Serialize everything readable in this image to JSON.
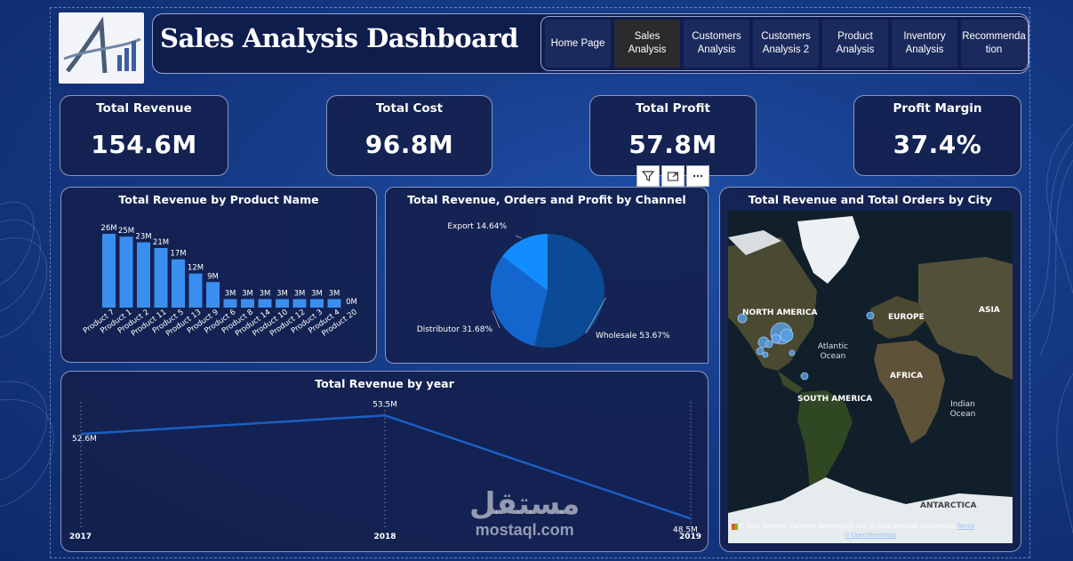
{
  "header": {
    "title": "Sales Analysis Dashboard",
    "nav": [
      {
        "label": "Home Page",
        "active": false
      },
      {
        "label": "Sales Analysis",
        "active": true
      },
      {
        "label": "Customers\nAnalysis",
        "active": false
      },
      {
        "label": "Customers\nAnalysis 2",
        "active": false
      },
      {
        "label": "Product\nAnalysis",
        "active": false
      },
      {
        "label": "Inventory\nAnalysis",
        "active": false
      },
      {
        "label": "Recommenda\ntion",
        "active": false
      }
    ]
  },
  "kpis": [
    {
      "title": "Total Revenue",
      "value": "154.6M"
    },
    {
      "title": "Total Cost",
      "value": "96.8M"
    },
    {
      "title": "Total Profit",
      "value": "57.8M"
    },
    {
      "title": "Profit Margin",
      "value": "37.4%"
    }
  ],
  "visual_toolbar": {
    "filter_icon": "filter-icon",
    "focus_icon": "focus-mode-icon",
    "more_icon": "more-options-icon"
  },
  "chart_data": [
    {
      "type": "bar",
      "title": "Total Revenue by Product Name",
      "categories": [
        "Product 7",
        "Product 1",
        "Product 2",
        "Product 11",
        "Product 5",
        "Product 13",
        "Product 9",
        "Product 6",
        "Product 8",
        "Product 14",
        "Product 10",
        "Product 12",
        "Product 3",
        "Product 4",
        "Product 20"
      ],
      "values": [
        26,
        25,
        23,
        21,
        17,
        12,
        9,
        3,
        3,
        3,
        3,
        3,
        3,
        3,
        0
      ],
      "labels": [
        "26M",
        "25M",
        "23M",
        "21M",
        "17M",
        "12M",
        "9M",
        "3M",
        "3M",
        "3M",
        "3M",
        "3M",
        "3M",
        "3M",
        "0M"
      ],
      "ylim": [
        0,
        26
      ],
      "color": "#3a8ef0"
    },
    {
      "type": "pie",
      "title": "Total Revenue, Orders and Profit by Channel",
      "slices": [
        {
          "name": "Wholesale",
          "value": 53.67,
          "label": "Wholesale 53.67%",
          "color": "#0b4a94"
        },
        {
          "name": "Distributor",
          "value": 31.68,
          "label": "Distributor 31.68%",
          "color": "#1466cf"
        },
        {
          "name": "Export",
          "value": 14.64,
          "label": "Export 14.64%",
          "color": "#118dff"
        }
      ]
    },
    {
      "type": "line",
      "title": "Total Revenue by year",
      "x": [
        "2017",
        "2018",
        "2019"
      ],
      "values": [
        52.6,
        53.5,
        48.5
      ],
      "labels": [
        "52.6M",
        "53.5M",
        "48.5M"
      ],
      "ylim": [
        48.3,
        53.9
      ],
      "color": "#1a5fc4"
    }
  ],
  "map": {
    "title": "Total Revenue and Total Orders by City",
    "regions": [
      "NORTH AMERICA",
      "EUROPE",
      "ASIA",
      "AFRICA",
      "SOUTH AMERICA",
      "ANTARCTICA"
    ],
    "oceans": [
      "Atlantic\nOcean",
      "Indian\nOcean"
    ],
    "credit": "© 2026 TomTom, Earthstar Geographics SIO, © 2026 Microsoft Corporation,",
    "terms": "Terms",
    "osm": "© OpenStreetMap"
  },
  "watermark": {
    "arabic": "مستقل",
    "latin": "mostaql.com"
  }
}
